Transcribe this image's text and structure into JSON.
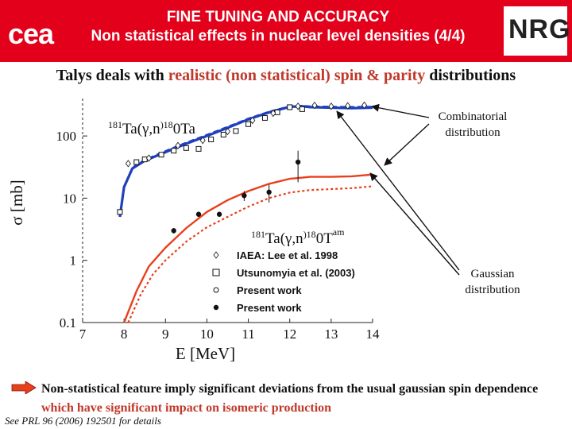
{
  "header": {
    "title_line1": "FINE TUNING AND ACCURACY",
    "title_line2": "Non statistical effects in nuclear level densities (4/4)",
    "cea_logo_text": "cea",
    "nrg_logo_text": "NRG",
    "colors": {
      "header_bg": "#e2001a",
      "text": "#ffffff"
    }
  },
  "subtitle": {
    "part1": "Talys deals with ",
    "highlight": "realistic (non statistical) spin & parity",
    "part2": " distributions"
  },
  "callouts": {
    "combinatorial": [
      "Combinatorial",
      "distribution"
    ],
    "gaussian": [
      "Gaussian",
      "distribution"
    ]
  },
  "bullet": {
    "text1": "Non-statistical feature imply significant deviations from the usual gaussian spin dependence ",
    "text2": "which have significant impact on isomeric production"
  },
  "footnote": "See PRL 96 (2006) 192501 for details",
  "chart_data": {
    "type": "line",
    "xlabel": "E [MeV]",
    "ylabel": "σ [mb]",
    "xlim": [
      7,
      14
    ],
    "ylim": [
      0.1,
      400
    ],
    "yscale": "log",
    "x_ticks": [
      7,
      8,
      9,
      10,
      11,
      12,
      13,
      14
    ],
    "y_ticks": [
      {
        "value": 0.1,
        "label": "0.1"
      },
      {
        "value": 1,
        "label": "1"
      },
      {
        "value": 10,
        "label": "10"
      },
      {
        "value": 100,
        "label": "100"
      }
    ],
    "annotations": [
      {
        "text": "181Ta(γ,n)180Ta",
        "target": "total"
      },
      {
        "text": "181Ta(γ,n)180Tam",
        "target": "isomer"
      }
    ],
    "legend": {
      "placement": "bottom-center",
      "entries": [
        {
          "marker": "diamond-open",
          "label": "IAEA: Lee et al. 1998"
        },
        {
          "marker": "square-open",
          "label": "Utsunomyia et al. (2003)"
        },
        {
          "marker": "circle-open",
          "label": "Present work"
        },
        {
          "marker": "circle-filled",
          "label": "Present work"
        }
      ]
    },
    "colors": {
      "total": "#1f3fbf",
      "isomer": "#e8401c",
      "points": "#111111"
    },
    "series": [
      {
        "role": "total-combinatorial",
        "style": "solid-blue",
        "x": [
          7.9,
          8.0,
          8.2,
          8.5,
          9.0,
          9.5,
          10.0,
          10.5,
          11.0,
          11.5,
          12.0,
          12.3,
          12.5,
          13.0,
          13.5,
          14.0
        ],
        "y": [
          5.0,
          15.0,
          30.0,
          40.0,
          55.0,
          75.0,
          100.0,
          135.0,
          185.0,
          240.0,
          295.0,
          300.0,
          290.0,
          285.0,
          280.0,
          285.0
        ]
      },
      {
        "role": "total-gaussian",
        "style": "dashed-blue",
        "x": [
          7.9,
          8.0,
          8.2,
          8.5,
          9.0,
          9.5,
          10.0,
          10.5,
          11.0,
          11.5,
          12.0,
          12.3,
          12.5,
          13.0,
          13.5,
          14.0
        ],
        "y": [
          5.0,
          15.0,
          31.0,
          41.0,
          57.0,
          78.0,
          104.0,
          140.0,
          190.0,
          245.0,
          300.0,
          305.0,
          298.0,
          295.0,
          292.0,
          295.0
        ]
      },
      {
        "role": "isomer-combinatorial",
        "style": "solid-orange",
        "x": [
          8.0,
          8.3,
          8.6,
          9.0,
          9.5,
          10.0,
          10.5,
          11.0,
          11.5,
          12.0,
          12.5,
          13.0,
          13.5,
          14.0
        ],
        "y": [
          0.1,
          0.32,
          0.8,
          1.6,
          3.3,
          6.0,
          9.3,
          13.0,
          17.0,
          20.5,
          22.0,
          22.0,
          22.5,
          24.0
        ]
      },
      {
        "role": "isomer-gaussian",
        "style": "dotted-orange",
        "x": [
          8.1,
          8.4,
          8.7,
          9.0,
          9.5,
          10.0,
          10.5,
          11.0,
          11.5,
          12.0,
          12.5,
          13.0,
          13.5,
          14.0
        ],
        "y": [
          0.1,
          0.28,
          0.6,
          1.0,
          2.0,
          3.4,
          5.0,
          7.3,
          10.0,
          12.3,
          13.5,
          14.0,
          14.5,
          15.5
        ]
      },
      {
        "role": "data-isomer-filled",
        "marker": "circle-filled",
        "x": [
          9.2,
          9.8,
          10.3,
          10.9,
          11.5,
          12.2
        ],
        "y": [
          3.0,
          5.5,
          5.5,
          11.0,
          12.5,
          38.0
        ],
        "err": [
          0.3,
          0.5,
          0.5,
          2.0,
          4.0,
          20.0
        ]
      },
      {
        "role": "data-total-open-square",
        "marker": "square-open",
        "x": [
          7.9,
          8.3,
          8.5,
          8.9,
          9.2,
          9.5,
          9.8,
          10.1,
          10.4,
          10.7,
          11.0,
          11.4,
          11.7,
          12.0,
          12.3
        ],
        "y": [
          6.0,
          38.0,
          42.0,
          50.0,
          58.0,
          64.0,
          62.0,
          88.0,
          105.0,
          120.0,
          155.0,
          195.0,
          240.0,
          290.0,
          270.0
        ]
      },
      {
        "role": "data-total-open-diamond",
        "marker": "diamond-open",
        "x": [
          8.1,
          8.6,
          9.3,
          9.9,
          10.5,
          11.1,
          11.6,
          12.2,
          12.6,
          13.0,
          13.4,
          13.8
        ],
        "y": [
          36.0,
          44.0,
          70.0,
          85.0,
          118.0,
          178.0,
          232.0,
          300.0,
          310.0,
          300.0,
          305.0,
          312.0
        ]
      }
    ]
  }
}
